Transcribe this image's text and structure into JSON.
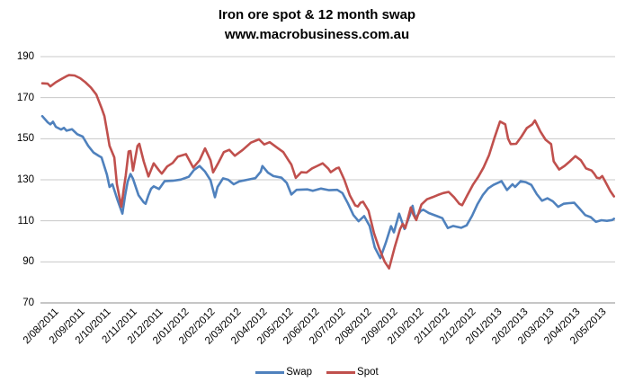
{
  "title": {
    "line1": "Iron ore spot & 12 month swap",
    "line2": "www.macrobusiness.com.au"
  },
  "colors": {
    "swap": "#4F81BD",
    "spot": "#C0504D",
    "gridline": "#C8C8C8",
    "axis_line": "#8C8C8C",
    "text": "#000000",
    "background": "#FFFFFF"
  },
  "legend": {
    "swap_label": "Swap",
    "spot_label": "Spot"
  },
  "chart_data": {
    "type": "line",
    "title": "Iron ore spot & 12 month swap",
    "subtitle": "www.macrobusiness.com.au",
    "xlabel": "",
    "ylabel": "",
    "ylim": [
      70,
      190
    ],
    "yticks": [
      70,
      90,
      110,
      130,
      150,
      170,
      190
    ],
    "grid": true,
    "legend_position": "bottom",
    "x_unit": "months since 2/08/2011 (fractional = intra-month position)",
    "x_labels": [
      "2/08/2011",
      "2/09/2011",
      "2/10/2011",
      "2/11/2011",
      "2/12/2011",
      "2/01/2012",
      "2/02/2012",
      "2/03/2012",
      "2/04/2012",
      "2/05/2012",
      "2/06/2012",
      "2/07/2012",
      "2/08/2012",
      "2/09/2012",
      "2/10/2012",
      "2/11/2012",
      "2/12/2012",
      "2/01/2013",
      "2/02/2013",
      "2/03/2013",
      "2/04/2013",
      "2/05/2013"
    ],
    "series": [
      {
        "name": "Swap",
        "color": "#4F81BD",
        "points": [
          [
            0.07,
            161
          ],
          [
            0.28,
            158
          ],
          [
            0.38,
            157
          ],
          [
            0.48,
            158.3
          ],
          [
            0.59,
            155.8
          ],
          [
            0.79,
            154.5
          ],
          [
            0.9,
            155.3
          ],
          [
            1.0,
            153.9
          ],
          [
            1.21,
            154.6
          ],
          [
            1.41,
            152.2
          ],
          [
            1.62,
            151
          ],
          [
            1.83,
            146.5
          ],
          [
            2.03,
            143.3
          ],
          [
            2.24,
            141.6
          ],
          [
            2.34,
            140.9
          ],
          [
            2.55,
            132.5
          ],
          [
            2.65,
            126.5
          ],
          [
            2.76,
            127.8
          ],
          [
            2.96,
            120
          ],
          [
            3.14,
            113.5
          ],
          [
            3.24,
            122
          ],
          [
            3.34,
            129
          ],
          [
            3.45,
            132.8
          ],
          [
            3.55,
            130.5
          ],
          [
            3.76,
            122.5
          ],
          [
            3.96,
            119
          ],
          [
            4.03,
            118.3
          ],
          [
            4.14,
            122.5
          ],
          [
            4.24,
            125.6
          ],
          [
            4.34,
            126.8
          ],
          [
            4.55,
            125.5
          ],
          [
            4.76,
            129.3
          ],
          [
            5.07,
            129.5
          ],
          [
            5.38,
            130.1
          ],
          [
            5.69,
            131.5
          ],
          [
            5.89,
            134.8
          ],
          [
            6.1,
            136.7
          ],
          [
            6.31,
            134
          ],
          [
            6.52,
            129.8
          ],
          [
            6.69,
            121.5
          ],
          [
            6.79,
            126.5
          ],
          [
            7.0,
            130.7
          ],
          [
            7.2,
            130
          ],
          [
            7.41,
            127.8
          ],
          [
            7.62,
            129.2
          ],
          [
            7.93,
            130
          ],
          [
            8.24,
            130.8
          ],
          [
            8.45,
            134
          ],
          [
            8.51,
            136.7
          ],
          [
            8.72,
            133.5
          ],
          [
            8.93,
            131.8
          ],
          [
            9.24,
            131
          ],
          [
            9.44,
            128.5
          ],
          [
            9.62,
            122.8
          ],
          [
            9.82,
            125.1
          ],
          [
            10.24,
            125.3
          ],
          [
            10.44,
            124.6
          ],
          [
            10.76,
            125.7
          ],
          [
            11.07,
            124.9
          ],
          [
            11.38,
            125.1
          ],
          [
            11.58,
            123.5
          ],
          [
            11.79,
            118.5
          ],
          [
            12.0,
            112.8
          ],
          [
            12.2,
            109.8
          ],
          [
            12.41,
            112.3
          ],
          [
            12.62,
            107.5
          ],
          [
            12.82,
            97
          ],
          [
            13.03,
            91.8
          ],
          [
            13.24,
            99.3
          ],
          [
            13.44,
            107.4
          ],
          [
            13.55,
            104.4
          ],
          [
            13.75,
            113.5
          ],
          [
            13.96,
            106
          ],
          [
            14.17,
            112.9
          ],
          [
            14.27,
            117.3
          ],
          [
            14.37,
            111.2
          ],
          [
            14.58,
            114.8
          ],
          [
            14.68,
            115.4
          ],
          [
            14.89,
            113.8
          ],
          [
            15.2,
            112.3
          ],
          [
            15.41,
            111.3
          ],
          [
            15.62,
            106.5
          ],
          [
            15.82,
            107.5
          ],
          [
            16.13,
            106.6
          ],
          [
            16.34,
            107.8
          ],
          [
            16.55,
            112.5
          ],
          [
            16.75,
            118
          ],
          [
            16.96,
            122.5
          ],
          [
            17.17,
            125.8
          ],
          [
            17.37,
            127.5
          ],
          [
            17.68,
            129.3
          ],
          [
            17.89,
            125
          ],
          [
            18.1,
            127.8
          ],
          [
            18.2,
            126.5
          ],
          [
            18.41,
            129.3
          ],
          [
            18.61,
            128.8
          ],
          [
            18.82,
            127.5
          ],
          [
            19.03,
            123
          ],
          [
            19.23,
            119.8
          ],
          [
            19.44,
            121
          ],
          [
            19.65,
            119.5
          ],
          [
            19.85,
            116.8
          ],
          [
            20.06,
            118.3
          ],
          [
            20.27,
            118.6
          ],
          [
            20.47,
            118.8
          ],
          [
            20.68,
            115.8
          ],
          [
            20.89,
            112.8
          ],
          [
            21.1,
            111.8
          ],
          [
            21.3,
            109.5
          ],
          [
            21.51,
            110.3
          ],
          [
            21.72,
            110
          ],
          [
            21.92,
            110.4
          ],
          [
            21.99,
            111
          ]
        ]
      },
      {
        "name": "Spot",
        "color": "#C0504D",
        "points": [
          [
            0.07,
            177
          ],
          [
            0.28,
            176.8
          ],
          [
            0.38,
            175.5
          ],
          [
            0.59,
            177.5
          ],
          [
            0.79,
            179
          ],
          [
            1.0,
            180.5
          ],
          [
            1.1,
            181
          ],
          [
            1.31,
            180.8
          ],
          [
            1.52,
            179.5
          ],
          [
            1.72,
            177.5
          ],
          [
            1.93,
            175
          ],
          [
            2.14,
            171.5
          ],
          [
            2.34,
            165
          ],
          [
            2.45,
            161
          ],
          [
            2.55,
            154
          ],
          [
            2.65,
            146.5
          ],
          [
            2.83,
            140.9
          ],
          [
            2.93,
            127.8
          ],
          [
            3.1,
            116.8
          ],
          [
            3.21,
            127
          ],
          [
            3.27,
            132
          ],
          [
            3.38,
            143.8
          ],
          [
            3.45,
            144
          ],
          [
            3.55,
            134.5
          ],
          [
            3.72,
            146.5
          ],
          [
            3.79,
            147.5
          ],
          [
            3.96,
            139
          ],
          [
            4.14,
            131.6
          ],
          [
            4.34,
            138
          ],
          [
            4.55,
            134.5
          ],
          [
            4.65,
            133
          ],
          [
            4.86,
            136.5
          ],
          [
            5.07,
            138.2
          ],
          [
            5.27,
            141.3
          ],
          [
            5.58,
            142.5
          ],
          [
            5.86,
            135.9
          ],
          [
            6.1,
            139.5
          ],
          [
            6.31,
            145.3
          ],
          [
            6.52,
            139.5
          ],
          [
            6.62,
            133.6
          ],
          [
            6.83,
            138.5
          ],
          [
            7.03,
            143.5
          ],
          [
            7.24,
            144.6
          ],
          [
            7.45,
            141.7
          ],
          [
            7.76,
            144.6
          ],
          [
            8.07,
            148.1
          ],
          [
            8.38,
            149.7
          ],
          [
            8.58,
            147.2
          ],
          [
            8.79,
            148.3
          ],
          [
            9.1,
            145.4
          ],
          [
            9.31,
            143.5
          ],
          [
            9.51,
            139.5
          ],
          [
            9.62,
            137.4
          ],
          [
            9.79,
            130.9
          ],
          [
            10.0,
            133.7
          ],
          [
            10.2,
            133.5
          ],
          [
            10.41,
            135.5
          ],
          [
            10.62,
            136.8
          ],
          [
            10.82,
            138
          ],
          [
            11.03,
            135.5
          ],
          [
            11.13,
            133.7
          ],
          [
            11.34,
            135.5
          ],
          [
            11.44,
            135.9
          ],
          [
            11.65,
            130
          ],
          [
            11.86,
            122.5
          ],
          [
            12.07,
            117.5
          ],
          [
            12.17,
            117
          ],
          [
            12.27,
            118.8
          ],
          [
            12.37,
            119.3
          ],
          [
            12.58,
            114.9
          ],
          [
            12.79,
            104
          ],
          [
            12.99,
            96.5
          ],
          [
            13.2,
            90
          ],
          [
            13.37,
            86.8
          ],
          [
            13.58,
            97
          ],
          [
            13.79,
            106
          ],
          [
            13.89,
            108.5
          ],
          [
            13.99,
            106.5
          ],
          [
            14.2,
            116.5
          ],
          [
            14.3,
            113
          ],
          [
            14.41,
            110.4
          ],
          [
            14.61,
            118
          ],
          [
            14.82,
            120.5
          ],
          [
            15.03,
            121.5
          ],
          [
            15.24,
            122.6
          ],
          [
            15.44,
            123.5
          ],
          [
            15.65,
            124.1
          ],
          [
            15.86,
            121.5
          ],
          [
            16.06,
            118.3
          ],
          [
            16.17,
            117.6
          ],
          [
            16.37,
            122.5
          ],
          [
            16.58,
            127.5
          ],
          [
            16.79,
            131.5
          ],
          [
            16.99,
            136
          ],
          [
            17.2,
            142
          ],
          [
            17.41,
            150.5
          ],
          [
            17.62,
            158.4
          ],
          [
            17.82,
            157
          ],
          [
            17.93,
            150
          ],
          [
            18.03,
            147.4
          ],
          [
            18.24,
            147.5
          ],
          [
            18.44,
            151
          ],
          [
            18.65,
            155.2
          ],
          [
            18.86,
            157
          ],
          [
            18.96,
            158.9
          ],
          [
            19.17,
            153.5
          ],
          [
            19.37,
            149.5
          ],
          [
            19.58,
            147.4
          ],
          [
            19.68,
            139
          ],
          [
            19.89,
            135
          ],
          [
            20.1,
            136.8
          ],
          [
            20.3,
            139
          ],
          [
            20.51,
            141.5
          ],
          [
            20.72,
            139.5
          ],
          [
            20.92,
            135.5
          ],
          [
            21.13,
            134.5
          ],
          [
            21.23,
            133
          ],
          [
            21.33,
            131
          ],
          [
            21.44,
            130.7
          ],
          [
            21.54,
            131.8
          ],
          [
            21.64,
            129.5
          ],
          [
            21.85,
            124.5
          ],
          [
            21.99,
            121.9
          ]
        ]
      }
    ]
  }
}
